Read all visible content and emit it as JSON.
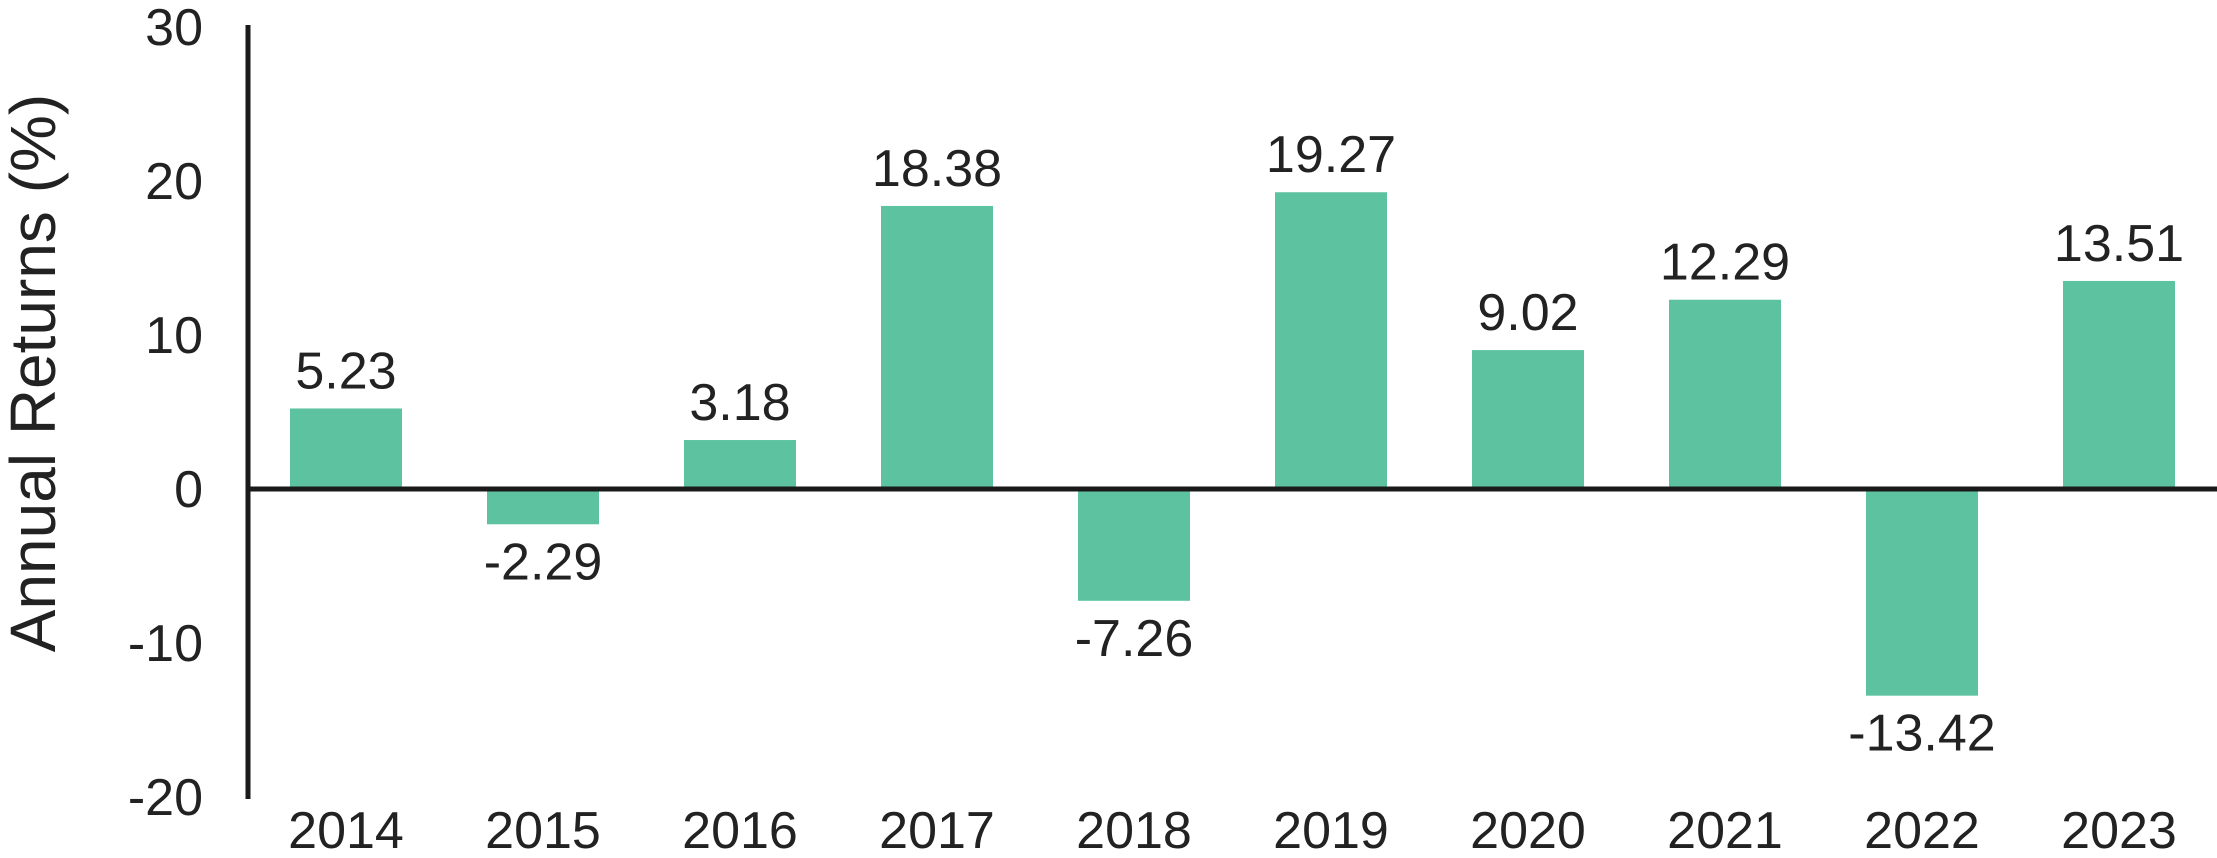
{
  "chart_data": {
    "type": "bar",
    "title": "",
    "xlabel": "",
    "ylabel": "Annual Returns (%)",
    "ylim": [
      -20,
      30
    ],
    "yticks": [
      30,
      20,
      10,
      0,
      -10,
      -20
    ],
    "categories": [
      "2014",
      "2015",
      "2016",
      "2017",
      "2018",
      "2019",
      "2020",
      "2021",
      "2022",
      "2023"
    ],
    "values": [
      5.23,
      -2.29,
      3.18,
      18.38,
      -7.26,
      19.27,
      9.02,
      12.29,
      -13.42,
      13.51
    ],
    "data_labels": [
      "5.23",
      "-2.29",
      "3.18",
      "18.38",
      "-7.26",
      "19.27",
      "9.02",
      "12.29",
      "-13.42",
      "13.51"
    ],
    "bar_color": "#5DC2A0",
    "axis_color": "#1a1a1a",
    "grid": false,
    "legend": "none"
  }
}
